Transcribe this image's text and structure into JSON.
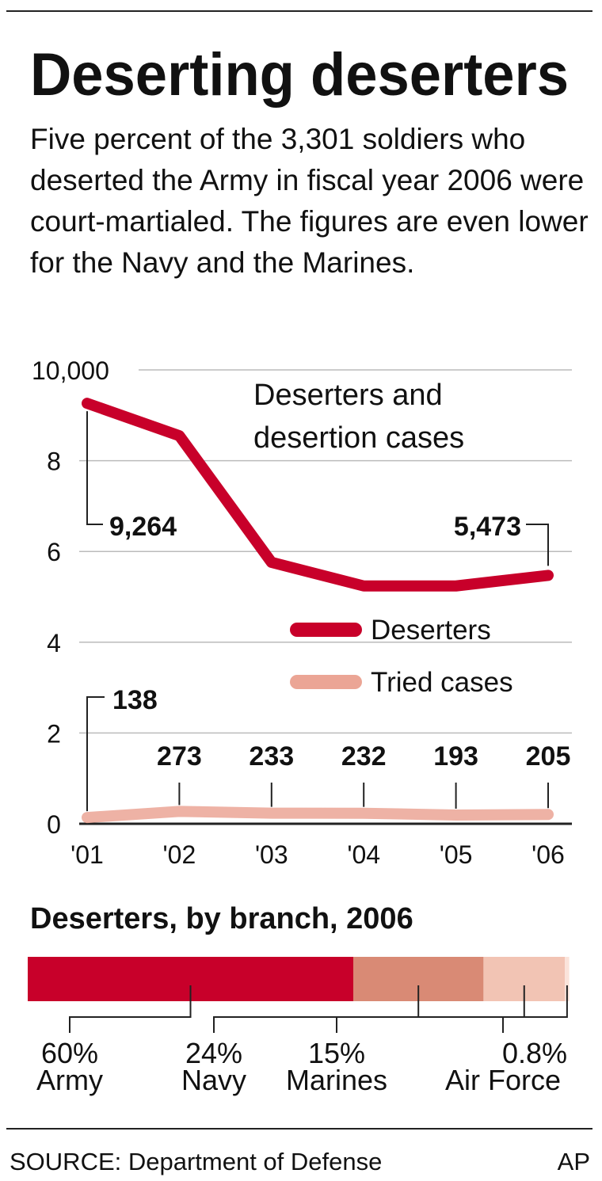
{
  "title": "Deserting deserters",
  "subtitle": "Five percent of the 3,301 soldiers who deserted the Army in fiscal year 2006 were court-martialed. The figures are even lower for the Navy and the Marines.",
  "source": "SOURCE: Department of Defense",
  "credit": "AP",
  "chart_data": [
    {
      "type": "line",
      "title": "Deserters and desertion cases",
      "categories": [
        "'01",
        "'02",
        "'03",
        "'04",
        "'05",
        "'06"
      ],
      "series": [
        {
          "name": "Deserters",
          "color": "#c8002a",
          "values": [
            9264,
            8550,
            5760,
            5240,
            5240,
            5473
          ],
          "value_labels": [
            "9,264",
            null,
            null,
            null,
            null,
            "5,473"
          ]
        },
        {
          "name": "Tried cases",
          "color": "#eba595",
          "values": [
            138,
            273,
            233,
            232,
            193,
            205
          ]
        }
      ],
      "ylim": [
        0,
        10000
      ],
      "yticks": [
        0,
        {
          "value": 2000,
          "label": "2"
        },
        {
          "value": 4000,
          "label": "4"
        },
        {
          "value": 6000,
          "label": "6"
        },
        {
          "value": 8000,
          "label": "8"
        },
        {
          "value": 10000,
          "label": "10,000"
        }
      ],
      "grid": true
    },
    {
      "type": "stacked-bar",
      "title": "Deserters, by branch, 2006",
      "categories": [
        "Army",
        "Navy",
        "Marines",
        "Air Force"
      ],
      "values": [
        60,
        24,
        15,
        0.8
      ],
      "value_labels": [
        "60%",
        "24%",
        "15%",
        "0.8%"
      ],
      "colors": [
        "#c8002a",
        "#d98a75",
        "#f2c4b4",
        "#fbe3da"
      ],
      "xlim": [
        0,
        100
      ]
    }
  ]
}
